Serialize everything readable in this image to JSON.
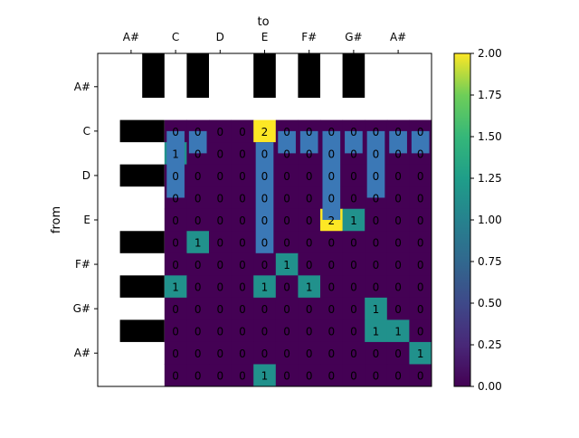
{
  "chart_data": {
    "type": "heatmap",
    "title": "",
    "xlabel": "to",
    "ylabel": "from",
    "x_tick_labels": [
      "A#",
      "C",
      "D",
      "E",
      "F#",
      "G#",
      "A#"
    ],
    "y_tick_labels": [
      "A#",
      "C",
      "D",
      "E",
      "F#",
      "G#",
      "A#"
    ],
    "x_axis_position": "top",
    "piano_keys": {
      "top": [
        false,
        false,
        true,
        false,
        true,
        false,
        false,
        true,
        false,
        true,
        false,
        true,
        false,
        false,
        false
      ],
      "left": [
        false,
        false,
        false,
        true,
        false,
        true,
        false,
        false,
        true,
        false,
        true,
        false,
        true,
        false,
        false
      ]
    },
    "matrix": [
      [
        0,
        0,
        0,
        0,
        2,
        0,
        0,
        0,
        0,
        0,
        0,
        0
      ],
      [
        1,
        0,
        0,
        0,
        0,
        0,
        0,
        0,
        0,
        0,
        0,
        0
      ],
      [
        0,
        0,
        0,
        0,
        0,
        0,
        0,
        0,
        0,
        0,
        0,
        0
      ],
      [
        0,
        0,
        0,
        0,
        0,
        0,
        0,
        0,
        0,
        0,
        0,
        0
      ],
      [
        0,
        0,
        0,
        0,
        0,
        0,
        0,
        2,
        1,
        0,
        0,
        0
      ],
      [
        0,
        1,
        0,
        0,
        0,
        0,
        0,
        0,
        0,
        0,
        0,
        0
      ],
      [
        0,
        0,
        0,
        0,
        0,
        1,
        0,
        0,
        0,
        0,
        0,
        0
      ],
      [
        1,
        0,
        0,
        0,
        1,
        0,
        1,
        0,
        0,
        0,
        0,
        0
      ],
      [
        0,
        0,
        0,
        0,
        0,
        0,
        0,
        0,
        0,
        1,
        0,
        0
      ],
      [
        0,
        0,
        0,
        0,
        0,
        0,
        0,
        0,
        0,
        1,
        1,
        0
      ],
      [
        0,
        0,
        0,
        0,
        0,
        0,
        0,
        0,
        0,
        0,
        0,
        1
      ],
      [
        0,
        0,
        0,
        0,
        1,
        0,
        0,
        0,
        0,
        0,
        0,
        0
      ]
    ],
    "overlay_bars": [
      {
        "col": 0,
        "rows": 3
      },
      {
        "col": 1,
        "rows": 1
      },
      {
        "col": 4,
        "rows": 5
      },
      {
        "col": 5,
        "rows": 1
      },
      {
        "col": 6,
        "rows": 1
      },
      {
        "col": 7,
        "rows": 4
      },
      {
        "col": 8,
        "rows": 1
      },
      {
        "col": 9,
        "rows": 3
      },
      {
        "col": 10,
        "rows": 1
      },
      {
        "col": 11,
        "rows": 1
      }
    ],
    "colorbar": {
      "min": 0.0,
      "max": 2.0,
      "ticks": [
        "0.00",
        "0.25",
        "0.50",
        "0.75",
        "1.00",
        "1.25",
        "1.50",
        "1.75",
        "2.00"
      ],
      "colormap": "viridis",
      "colors": {
        "low": "#440154",
        "mid": "#21918c",
        "high": "#fde725",
        "bar": "#3b78b6"
      }
    }
  }
}
